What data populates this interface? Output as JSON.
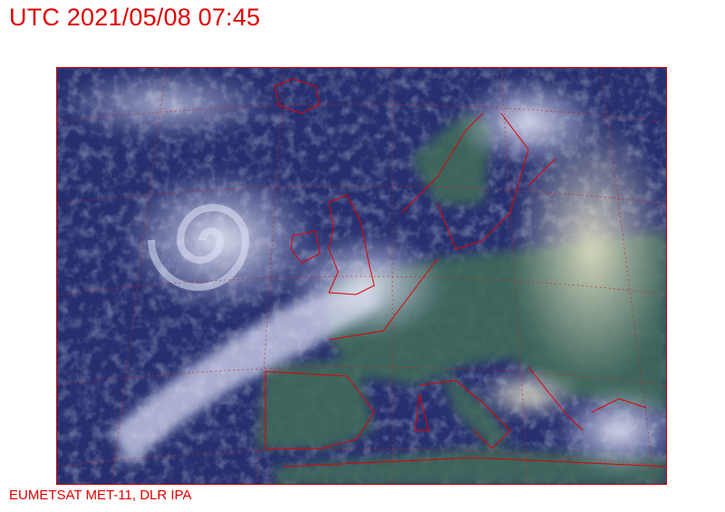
{
  "header": {
    "title": "UTC 2021/05/08 07:45"
  },
  "footer": {
    "credit": "EUMETSAT MET-11, DLR IPA"
  },
  "image": {
    "type": "satellite-composite",
    "colors": {
      "ocean": "#27306f",
      "cloud": "#d8dcf0",
      "land": "#3f6a5a",
      "coastline": "#e00000",
      "grid": "#d02020"
    }
  }
}
